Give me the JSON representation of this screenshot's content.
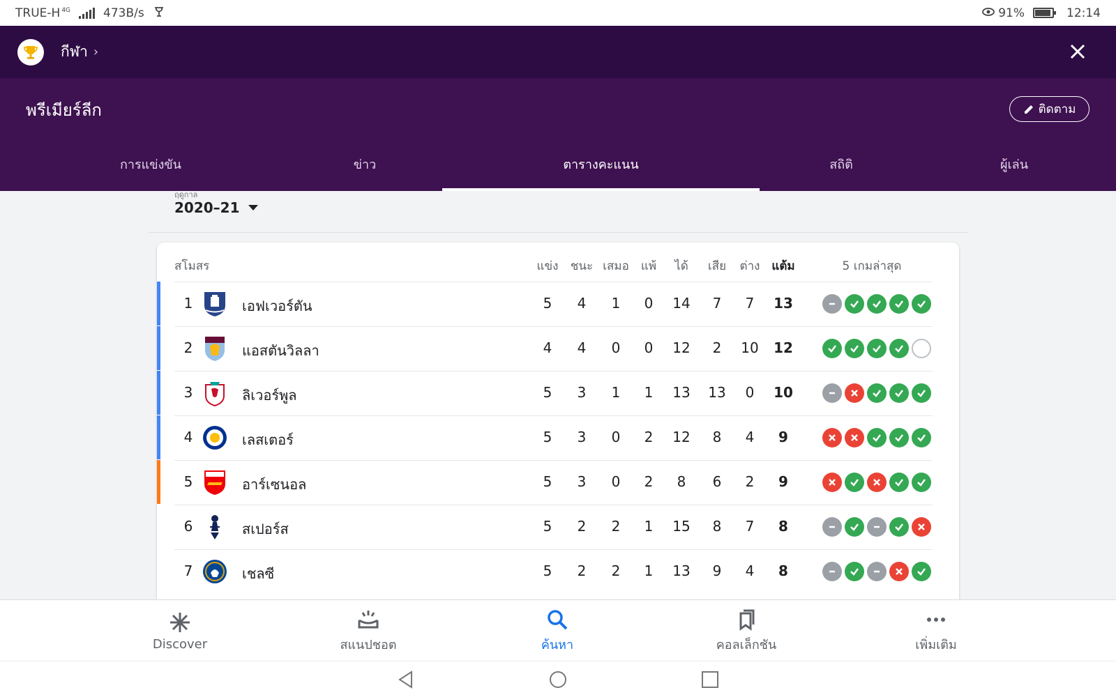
{
  "status_bar": {
    "carrier": "TRUE-H",
    "network": "4G",
    "speed": "473B/s",
    "battery": "91%",
    "battery_level": 0.91,
    "time": "12:14"
  },
  "header": {
    "breadcrumb": "กีฬา",
    "league_title": "พรีเมียร์ลีก",
    "follow_label": "ติดตาม"
  },
  "tabs": [
    {
      "label": "การแข่งขัน",
      "active": false
    },
    {
      "label": "ข่าว",
      "active": false
    },
    {
      "label": "ตารางคะแนน",
      "active": true
    },
    {
      "label": "สถิติ",
      "active": false
    },
    {
      "label": "ผู้เล่น",
      "active": false
    }
  ],
  "season": {
    "label": "ฤดูกาล",
    "value": "2020–21"
  },
  "table": {
    "columns": {
      "club": "สโมสร",
      "played": "แข่ง",
      "won": "ชนะ",
      "drawn": "เสมอ",
      "lost": "แพ้",
      "gf": "ได้",
      "ga": "เสีย",
      "gd": "ต่าง",
      "pts": "แต้ม",
      "form": "5 เกมล่าสุด"
    },
    "rows": [
      {
        "pos": "1",
        "club": "เอฟเวอร์ตัน",
        "crest": "everton-crest",
        "played": "5",
        "won": "4",
        "drawn": "1",
        "lost": "0",
        "gf": "14",
        "ga": "7",
        "gd": "7",
        "pts": "13",
        "form": [
          "D",
          "W",
          "W",
          "W",
          "W"
        ],
        "zone_color": "#4285f4"
      },
      {
        "pos": "2",
        "club": "แอสตันวิลลา",
        "crest": "aston-villa-crest",
        "played": "4",
        "won": "4",
        "drawn": "0",
        "lost": "0",
        "gf": "12",
        "ga": "2",
        "gd": "10",
        "pts": "12",
        "form": [
          "W",
          "W",
          "W",
          "W",
          "N"
        ],
        "zone_color": "#4285f4"
      },
      {
        "pos": "3",
        "club": "ลิเวอร์พูล",
        "crest": "liverpool-crest",
        "played": "5",
        "won": "3",
        "drawn": "1",
        "lost": "1",
        "gf": "13",
        "ga": "13",
        "gd": "0",
        "pts": "10",
        "form": [
          "D",
          "L",
          "W",
          "W",
          "W"
        ],
        "zone_color": "#4285f4"
      },
      {
        "pos": "4",
        "club": "เลสเตอร์",
        "crest": "leicester-crest",
        "played": "5",
        "won": "3",
        "drawn": "0",
        "lost": "2",
        "gf": "12",
        "ga": "8",
        "gd": "4",
        "pts": "9",
        "form": [
          "L",
          "L",
          "W",
          "W",
          "W"
        ],
        "zone_color": "#4285f4"
      },
      {
        "pos": "5",
        "club": "อาร์เซนอล",
        "crest": "arsenal-crest",
        "played": "5",
        "won": "3",
        "drawn": "0",
        "lost": "2",
        "gf": "8",
        "ga": "6",
        "gd": "2",
        "pts": "9",
        "form": [
          "L",
          "W",
          "L",
          "W",
          "W"
        ],
        "zone_color": "#fa7b17"
      },
      {
        "pos": "6",
        "club": "สเปอร์ส",
        "crest": "spurs-crest",
        "played": "5",
        "won": "2",
        "drawn": "2",
        "lost": "1",
        "gf": "15",
        "ga": "8",
        "gd": "7",
        "pts": "8",
        "form": [
          "D",
          "W",
          "D",
          "W",
          "L"
        ],
        "zone_color": ""
      },
      {
        "pos": "7",
        "club": "เชลซี",
        "crest": "chelsea-crest",
        "played": "5",
        "won": "2",
        "drawn": "2",
        "lost": "1",
        "gf": "13",
        "ga": "9",
        "gd": "4",
        "pts": "8",
        "form": [
          "D",
          "W",
          "D",
          "L",
          "W"
        ],
        "zone_color": ""
      }
    ]
  },
  "bottom_nav": [
    {
      "label": "Discover",
      "icon": "asterisk-icon",
      "active": false
    },
    {
      "label": "สแนปชอต",
      "icon": "snapshot-icon",
      "active": false
    },
    {
      "label": "ค้นหา",
      "icon": "search-icon",
      "active": true
    },
    {
      "label": "คอลเล็กชัน",
      "icon": "bookmarks-icon",
      "active": false
    },
    {
      "label": "เพิ่มเติม",
      "icon": "more-icon",
      "active": false
    }
  ],
  "colors": {
    "header_dark": "#2d0c43",
    "header": "#3e1150",
    "win": "#34a853",
    "loss": "#ea4335",
    "draw": "#9aa0a6",
    "accent": "#1a73e8"
  }
}
